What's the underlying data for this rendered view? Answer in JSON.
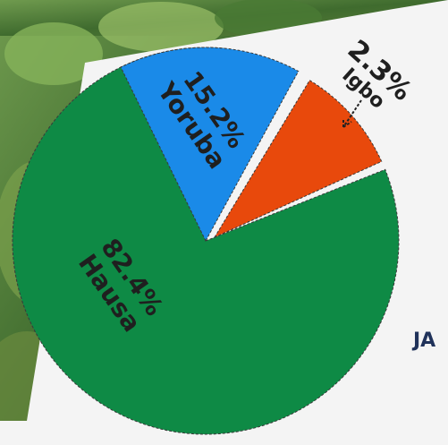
{
  "chart_data": {
    "type": "pie",
    "title": "",
    "slices": [
      {
        "label": "Hausa",
        "value": 82.4,
        "value_label": "82.4%",
        "color": "#0e8a45"
      },
      {
        "label": "Yoruba",
        "value": 15.2,
        "value_label": "15.2%",
        "color": "#1a8ae8"
      },
      {
        "label": "Igbo",
        "value": 2.3,
        "value_label": "2.3%",
        "color": "#e8490c"
      }
    ],
    "legend": "none"
  },
  "background": {
    "description_colors": {
      "foliage": "#4f7a3a",
      "paper": "#f3f3f3"
    }
  },
  "edge_text": "JA"
}
